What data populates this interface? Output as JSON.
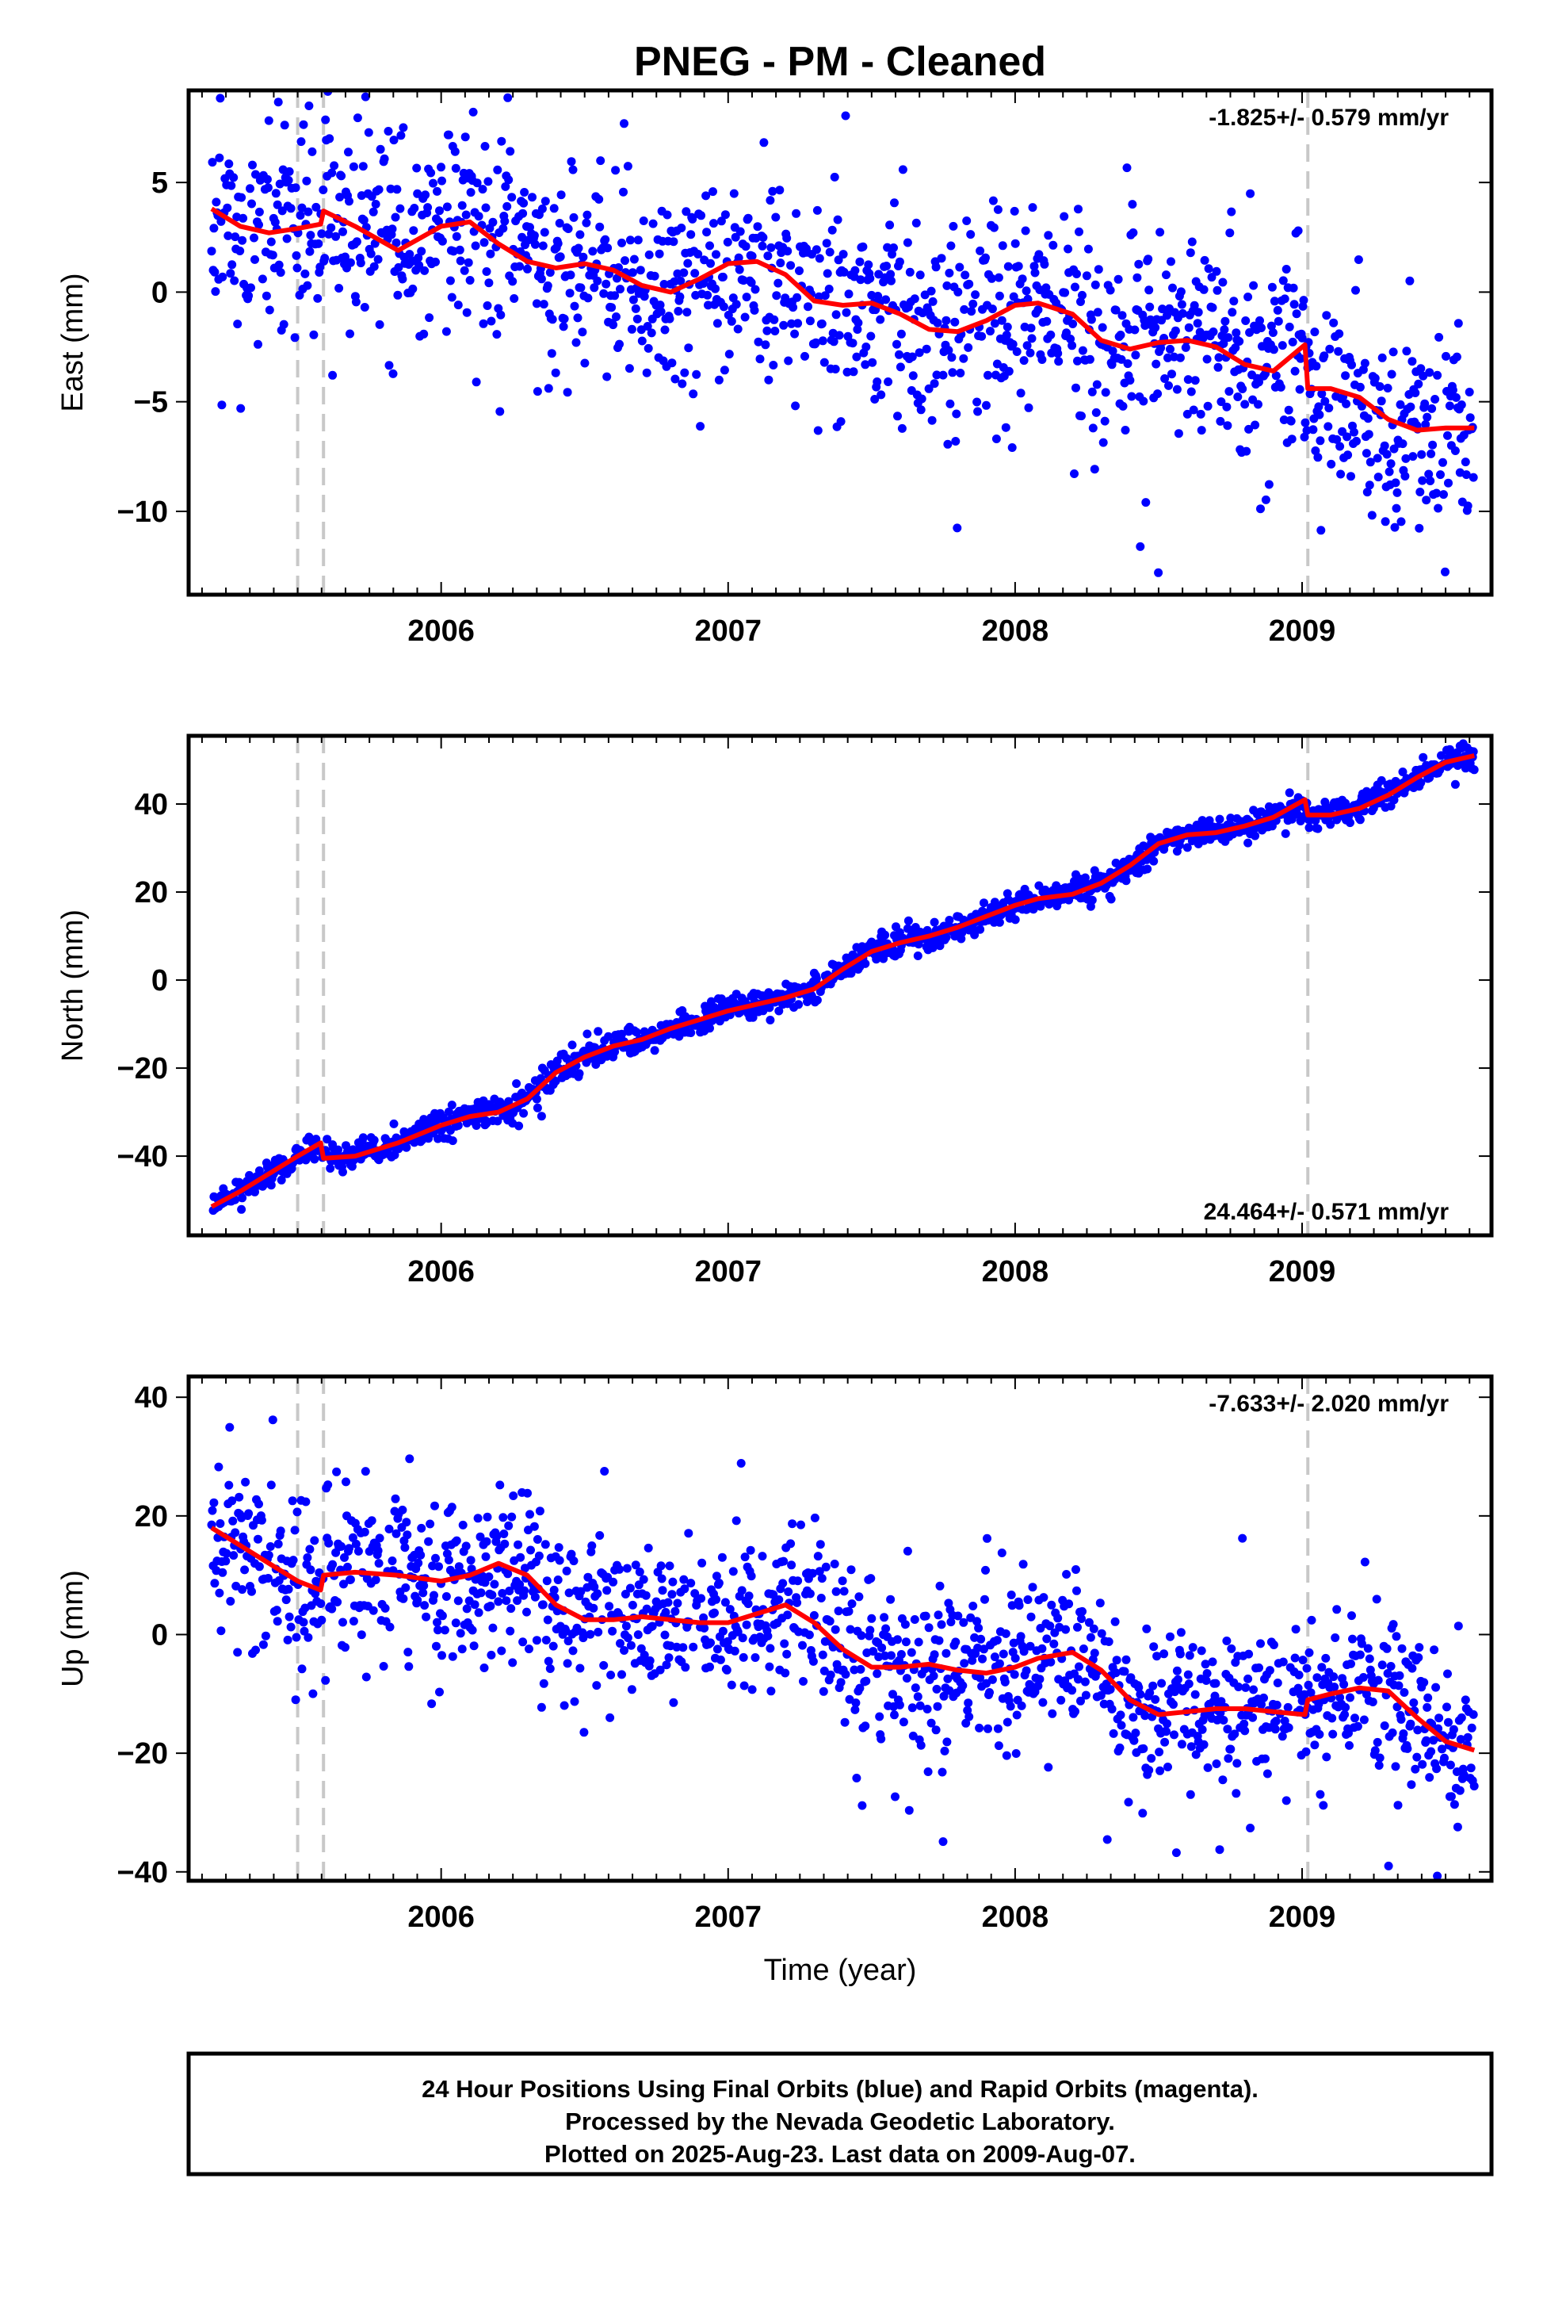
{
  "title": "PNEG  - PM - Cleaned",
  "xlabel": "Time (year)",
  "footer": {
    "line1": "24 Hour Positions Using Final Orbits (blue) and Rapid Orbits (magenta).",
    "line2": "Processed by the Nevada Geodetic Laboratory.",
    "line3": "Plotted on 2025-Aug-23. Last data on 2009-Aug-07."
  },
  "colors": {
    "points": "#0000ff",
    "model": "#ff0000",
    "breaks": "#c8c8c8",
    "frame": "#000000"
  },
  "chart_data": [
    {
      "type": "scatter",
      "name": "east",
      "ylabel": "East (mm)",
      "rate": "-1.825+/- 0.579 mm/yr",
      "rate_position": "top-right",
      "xlim": [
        2005.12,
        2009.66
      ],
      "ylim": [
        -13.8,
        9.2
      ],
      "yticks": [
        5,
        0,
        -5,
        -10
      ],
      "ytick_labels": [
        "5",
        "0",
        "−5",
        "−10"
      ],
      "xticks": [
        2006,
        2007,
        2008,
        2009
      ],
      "xtick_labels": [
        "2006",
        "2007",
        "2008",
        "2009"
      ],
      "breaks": [
        2005.5,
        2005.59,
        2009.02
      ],
      "model": {
        "x": [
          2005.2,
          2005.3,
          2005.4,
          2005.5,
          2005.58,
          2005.59,
          2005.7,
          2005.85,
          2006.0,
          2006.1,
          2006.2,
          2006.3,
          2006.4,
          2006.5,
          2006.6,
          2006.7,
          2006.8,
          2006.9,
          2007.0,
          2007.1,
          2007.2,
          2007.3,
          2007.4,
          2007.5,
          2007.6,
          2007.7,
          2007.8,
          2007.9,
          2008.0,
          2008.08,
          2008.2,
          2008.3,
          2008.4,
          2008.5,
          2008.6,
          2008.7,
          2008.8,
          2008.9,
          2009.01,
          2009.02,
          2009.1,
          2009.2,
          2009.3,
          2009.4,
          2009.5,
          2009.6
        ],
        "y": [
          3.8,
          3.0,
          2.7,
          2.9,
          3.1,
          3.7,
          3.0,
          1.9,
          3.0,
          3.2,
          2.2,
          1.4,
          1.1,
          1.3,
          1.0,
          0.3,
          0.0,
          0.6,
          1.3,
          1.4,
          0.8,
          -0.4,
          -0.6,
          -0.5,
          -1.0,
          -1.7,
          -1.8,
          -1.3,
          -0.6,
          -0.5,
          -1.0,
          -2.2,
          -2.6,
          -2.3,
          -2.2,
          -2.5,
          -3.3,
          -3.6,
          -2.4,
          -4.4,
          -4.4,
          -4.8,
          -5.8,
          -6.3,
          -6.2,
          -6.2
        ]
      }
    },
    {
      "type": "scatter",
      "name": "north",
      "ylabel": "North (mm)",
      "rate": "24.464+/- 0.571 mm/yr",
      "rate_position": "bottom-right",
      "xlim": [
        2005.12,
        2009.66
      ],
      "ylim": [
        -58.0,
        55.5
      ],
      "yticks": [
        40,
        20,
        0,
        -20,
        -40
      ],
      "ytick_labels": [
        "40",
        "20",
        "0",
        "−20",
        "−40"
      ],
      "xticks": [
        2006,
        2007,
        2008,
        2009
      ],
      "xtick_labels": [
        "2006",
        "2007",
        "2008",
        "2009"
      ],
      "breaks": [
        2005.5,
        2005.59,
        2009.02
      ],
      "model": {
        "x": [
          2005.2,
          2005.3,
          2005.4,
          2005.5,
          2005.58,
          2005.59,
          2005.7,
          2005.85,
          2006.0,
          2006.1,
          2006.2,
          2006.3,
          2006.4,
          2006.5,
          2006.6,
          2006.7,
          2006.8,
          2006.9,
          2007.0,
          2007.1,
          2007.2,
          2007.3,
          2007.4,
          2007.5,
          2007.6,
          2007.7,
          2007.8,
          2007.9,
          2008.0,
          2008.08,
          2008.2,
          2008.3,
          2008.4,
          2008.5,
          2008.6,
          2008.7,
          2008.8,
          2008.9,
          2009.01,
          2009.02,
          2009.1,
          2009.2,
          2009.3,
          2009.4,
          2009.5,
          2009.6
        ],
        "y": [
          -51.5,
          -48.0,
          -44.0,
          -40.0,
          -37.0,
          -40.5,
          -40.0,
          -37.0,
          -33.0,
          -31.0,
          -30.0,
          -27.0,
          -21.0,
          -17.5,
          -15.0,
          -13.5,
          -11.0,
          -9.0,
          -7.0,
          -5.5,
          -4.0,
          -2.0,
          2.5,
          6.5,
          8.5,
          10.0,
          12.0,
          14.5,
          17.0,
          18.5,
          19.5,
          22.0,
          26.0,
          31.0,
          33.0,
          33.5,
          35.0,
          37.0,
          41.0,
          37.5,
          37.5,
          39.0,
          42.0,
          46.0,
          49.5,
          51.0
        ]
      }
    },
    {
      "type": "scatter",
      "name": "up",
      "ylabel": "Up (mm)",
      "rate": "-7.633+/- 2.020 mm/yr",
      "rate_position": "top-right",
      "xlim": [
        2005.12,
        2009.66
      ],
      "ylim": [
        -41.5,
        43.5
      ],
      "yticks": [
        40,
        20,
        0,
        -20,
        -40
      ],
      "ytick_labels": [
        "40",
        "20",
        "0",
        "−20",
        "−40"
      ],
      "xticks": [
        2006,
        2007,
        2008,
        2009
      ],
      "xtick_labels": [
        "2006",
        "2007",
        "2008",
        "2009"
      ],
      "breaks": [
        2005.5,
        2005.59,
        2009.02
      ],
      "model": {
        "x": [
          2005.2,
          2005.3,
          2005.4,
          2005.5,
          2005.58,
          2005.59,
          2005.7,
          2005.85,
          2006.0,
          2006.1,
          2006.2,
          2006.3,
          2006.4,
          2006.5,
          2006.6,
          2006.7,
          2006.8,
          2006.9,
          2007.0,
          2007.1,
          2007.2,
          2007.3,
          2007.4,
          2007.5,
          2007.6,
          2007.7,
          2007.8,
          2007.9,
          2008.0,
          2008.08,
          2008.2,
          2008.3,
          2008.4,
          2008.5,
          2008.6,
          2008.7,
          2008.8,
          2008.9,
          2009.01,
          2009.02,
          2009.1,
          2009.2,
          2009.3,
          2009.4,
          2009.5,
          2009.6
        ],
        "y": [
          18.0,
          15.0,
          12.0,
          9.0,
          7.5,
          10.0,
          10.5,
          10.0,
          9.0,
          10.0,
          12.0,
          10.0,
          5.0,
          2.5,
          2.5,
          3.0,
          2.5,
          2.0,
          2.0,
          3.5,
          5.0,
          2.0,
          -2.5,
          -5.5,
          -5.5,
          -5.0,
          -6.0,
          -6.5,
          -5.5,
          -4.0,
          -3.0,
          -6.0,
          -11.0,
          -13.5,
          -13.0,
          -12.5,
          -12.5,
          -13.0,
          -13.5,
          -11.0,
          -10.0,
          -9.0,
          -9.5,
          -14.0,
          -18.0,
          -19.5
        ]
      }
    }
  ]
}
